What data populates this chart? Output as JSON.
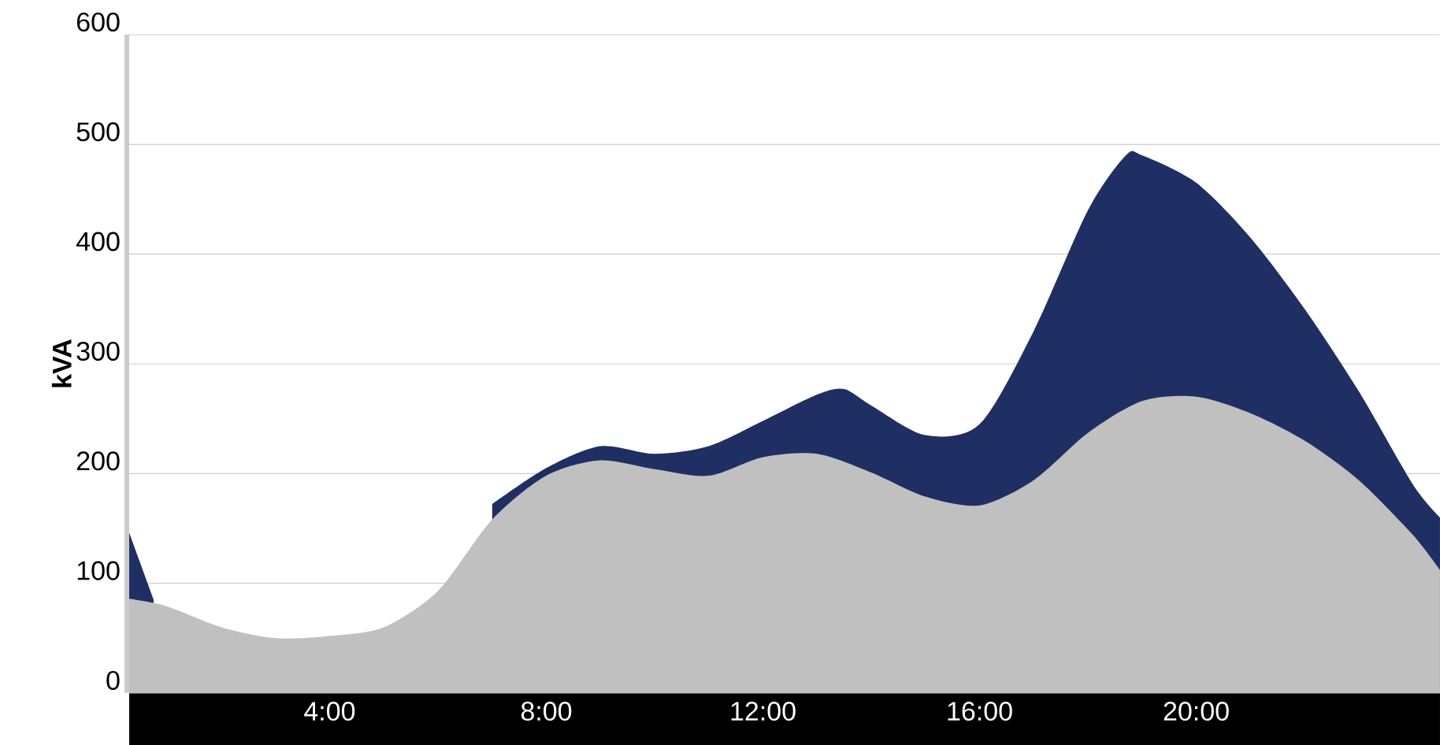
{
  "chart_data": {
    "type": "area",
    "ylabel": "kVA",
    "xlim": [
      0.3,
      24.5
    ],
    "ylim": [
      0,
      600
    ],
    "xticks": [
      {
        "value": 4,
        "label": "4:00"
      },
      {
        "value": 8,
        "label": "8:00"
      },
      {
        "value": 12,
        "label": "12:00"
      },
      {
        "value": 16,
        "label": "16:00"
      },
      {
        "value": 20,
        "label": "20:00"
      }
    ],
    "yticks": [
      0,
      100,
      200,
      300,
      400,
      500,
      600
    ],
    "grid": "y",
    "series": [
      {
        "color": "#1f2f63",
        "x": [
          0.3,
          0.75,
          6.5,
          7,
          8,
          9,
          10,
          11,
          12,
          13,
          13.5,
          14,
          15,
          16,
          17,
          18,
          18.7,
          19,
          20,
          21,
          22,
          23,
          24,
          24.5
        ],
        "values": [
          146,
          85,
          null,
          172,
          205,
          225,
          218,
          225,
          248,
          272,
          277,
          262,
          235,
          245,
          330,
          440,
          490,
          490,
          465,
          415,
          350,
          275,
          190,
          160
        ]
      },
      {
        "color": "#c0c0c0",
        "x": [
          0.3,
          1,
          2,
          3,
          4,
          5,
          6,
          7,
          8,
          9,
          10,
          11,
          12,
          13,
          14,
          15,
          16,
          17,
          18,
          19,
          20,
          21,
          22,
          23,
          24,
          24.5
        ],
        "values": [
          86,
          79,
          60,
          50,
          52,
          60,
          93,
          158,
          198,
          212,
          204,
          198,
          215,
          218,
          201,
          179,
          171,
          194,
          237,
          266,
          270,
          255,
          230,
          194,
          144,
          112
        ]
      }
    ]
  }
}
